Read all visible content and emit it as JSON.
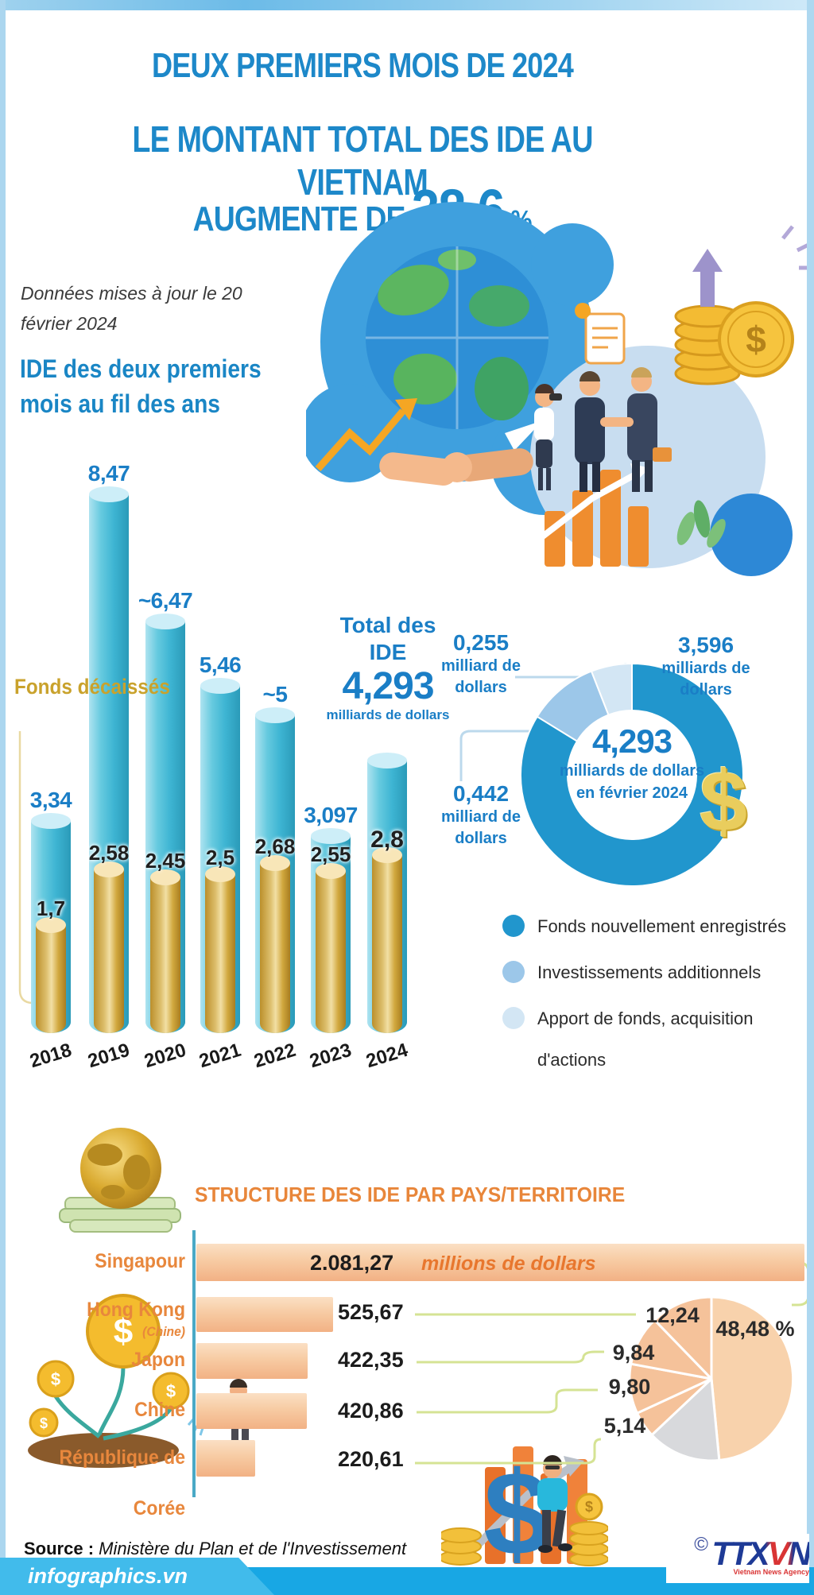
{
  "page": {
    "title_line1": "DEUX PREMIERS MOIS DE 2024",
    "title_line2": "LE MONTANT TOTAL DES IDE AU VIETNAM",
    "title_line3_prefix": "AUGMENTE DE",
    "title_line3_value": "38,6",
    "title_line3_suffix": "%",
    "updated_line1": "Données mises à jour le 20",
    "updated_line2": "février 2024",
    "dollar_glyph": "$",
    "source_label": "Source :",
    "source_text": " Ministère du Plan et de l'Investissement",
    "footer_brand": "infographics.vn",
    "copyright": "©",
    "agency": "TTXVN",
    "agency_sub": "Vietnam News Agency"
  },
  "chart_data": [
    {
      "id": "ide-deux-premiers-mois-par-an",
      "type": "bar",
      "title_line1": "IDE des deux premiers",
      "title_line2": "mois  au fil des ans",
      "categories": [
        "2018",
        "2019",
        "2020",
        "2021",
        "2022",
        "2023",
        "2024"
      ],
      "series": [
        {
          "name": "Total des IDE",
          "color": "#3eb5d3",
          "values": [
            3.34,
            8.47,
            6.47,
            5.46,
            5.0,
            3.097,
            4.293
          ],
          "labels": [
            "3,34",
            "8,47",
            "~6,47",
            "5,46",
            "~5",
            "3,097",
            ""
          ]
        },
        {
          "name": "Fonds décaissés",
          "color": "#d1a83e",
          "values": [
            1.7,
            2.58,
            2.45,
            2.5,
            2.68,
            2.55,
            2.8
          ],
          "labels": [
            "1,7",
            "2,58",
            "2,45",
            "2,5",
            "2,68",
            "2,55",
            "2,8"
          ]
        }
      ],
      "unit": "milliards de dollars",
      "ylim": [
        0,
        9
      ],
      "grid": false,
      "annotation": {
        "line1": "Total des",
        "line2": "IDE",
        "value": "4,293",
        "unit": "milliards de dollars"
      }
    },
    {
      "id": "structure-ide-fevrier-2024",
      "type": "pie",
      "shape": "donut",
      "center": {
        "value": "4,293",
        "line2": "milliards de dollars",
        "line3": "en février 2024"
      },
      "slices": [
        {
          "name": "Fonds nouvellement enregistrés",
          "value": 3.596,
          "value_label": "3,596",
          "unit_line1": "milliards de",
          "unit_line2": "dollars",
          "color": "#2196cd"
        },
        {
          "name": "Investissements additionnels",
          "value": 0.442,
          "value_label": "0,442",
          "unit_line1": "milliard de",
          "unit_line2": "dollars",
          "color": "#9cc7e9"
        },
        {
          "name": "Apport de fonds, acquisition d'actions",
          "value": 0.255,
          "value_label": "0,255",
          "unit_line1": "milliard de",
          "unit_line2": "dollars",
          "color": "#d3e6f4"
        }
      ],
      "legend": [
        {
          "label": "Fonds nouvellement enregistrés",
          "color": "#2196cd"
        },
        {
          "label": "Investissements additionnels",
          "color": "#9cc7e9"
        },
        {
          "label": "Apport de fonds,  acquisition",
          "label2": "d'actions",
          "color": "#d3e6f4"
        }
      ],
      "legend_position": "below-right"
    },
    {
      "id": "structure-ide-par-pays",
      "type": "bar",
      "title": "STRUCTURE DES IDE PAR PAYS/TERRITOIRE",
      "unit_note": "millions de dollars",
      "rows": [
        {
          "label": "Singapour",
          "value": 2081.27,
          "value_label": "2.081,27",
          "pct": 48.48,
          "pct_label": "48,48 %"
        },
        {
          "label": "Hong Kong",
          "sublabel": "(Chine)",
          "value": 525.67,
          "value_label": "525,67",
          "pct": 12.24,
          "pct_label": "12,24"
        },
        {
          "label": "Japon",
          "value": 422.35,
          "value_label": "422,35",
          "pct": 9.84,
          "pct_label": "9,84"
        },
        {
          "label": "Chine",
          "value": 420.86,
          "value_label": "420,86",
          "pct": 9.8,
          "pct_label": "9,80"
        },
        {
          "label": "République de",
          "sublabel": "Corée",
          "value": 220.61,
          "value_label": "220,61",
          "pct": 5.14,
          "pct_label": "5,14"
        }
      ],
      "bar_color": "#f7cba3",
      "pie_colors": {
        "first": "#f8d2ac",
        "rest": "#f5c29a",
        "other": "#d8d9dc"
      }
    }
  ]
}
